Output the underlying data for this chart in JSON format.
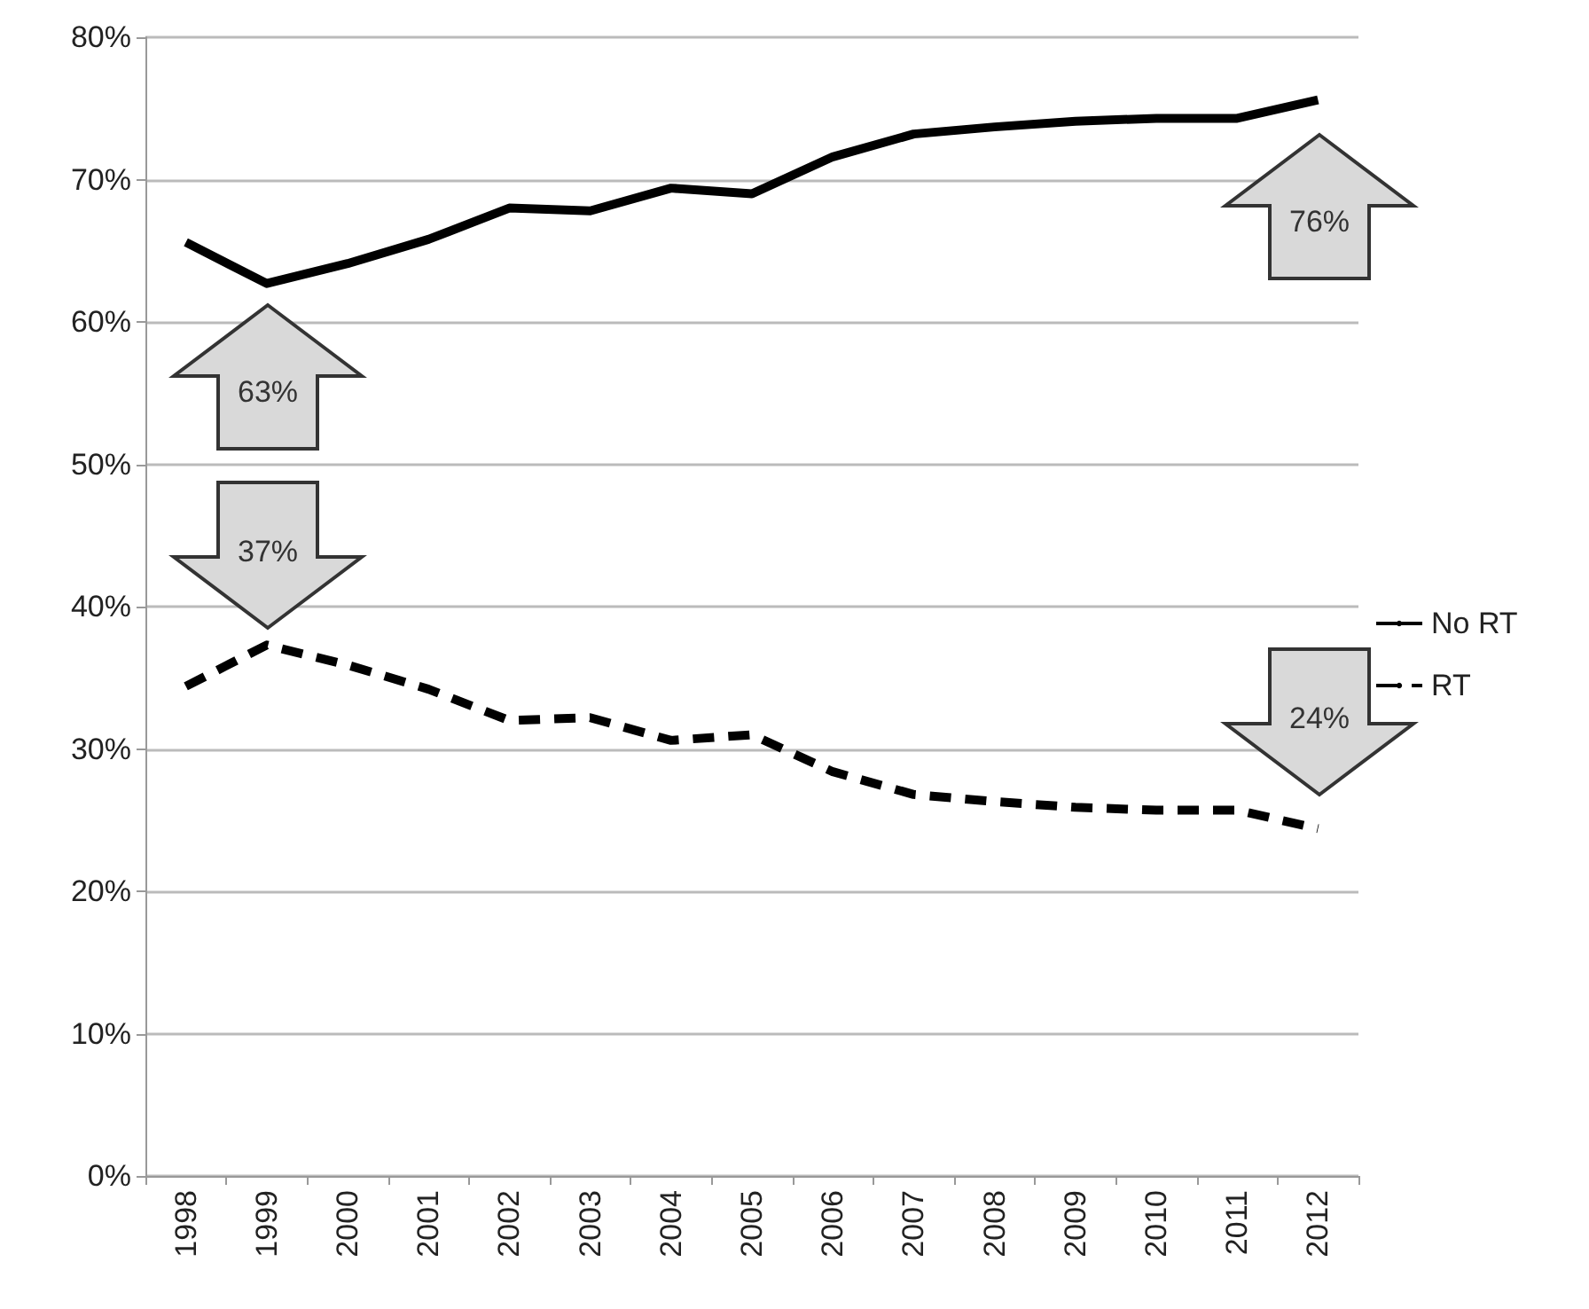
{
  "chart_data": {
    "type": "line",
    "categories": [
      "1998",
      "1999",
      "2000",
      "2001",
      "2002",
      "2003",
      "2004",
      "2005",
      "2006",
      "2007",
      "2008",
      "2009",
      "2010",
      "2011",
      "2012"
    ],
    "series": [
      {
        "name": "No RT",
        "color": "#000000",
        "line_style": "solid",
        "values": [
          65.6,
          62.7,
          64.1,
          65.8,
          68.0,
          67.8,
          69.4,
          69.0,
          71.6,
          73.2,
          73.7,
          74.1,
          74.3,
          74.3,
          75.6
        ]
      },
      {
        "name": "RT",
        "color": "#000000",
        "line_style": "dashed",
        "values": [
          34.4,
          37.3,
          35.9,
          34.2,
          32.0,
          32.2,
          30.6,
          31.0,
          28.4,
          26.8,
          26.3,
          25.9,
          25.7,
          25.7,
          24.4
        ]
      }
    ],
    "ylim": [
      0,
      80
    ],
    "yticks": [
      {
        "value": 0,
        "label": "0%"
      },
      {
        "value": 10,
        "label": "10%"
      },
      {
        "value": 20,
        "label": "20%"
      },
      {
        "value": 30,
        "label": "30%"
      },
      {
        "value": 40,
        "label": "40%"
      },
      {
        "value": 50,
        "label": "50%"
      },
      {
        "value": 60,
        "label": "60%"
      },
      {
        "value": 70,
        "label": "70%"
      },
      {
        "value": 80,
        "label": "80%"
      }
    ],
    "grid": "y",
    "legend": "right",
    "marker": "none",
    "annotations": [
      "63%",
      "37%",
      "76%",
      "24%"
    ]
  }
}
